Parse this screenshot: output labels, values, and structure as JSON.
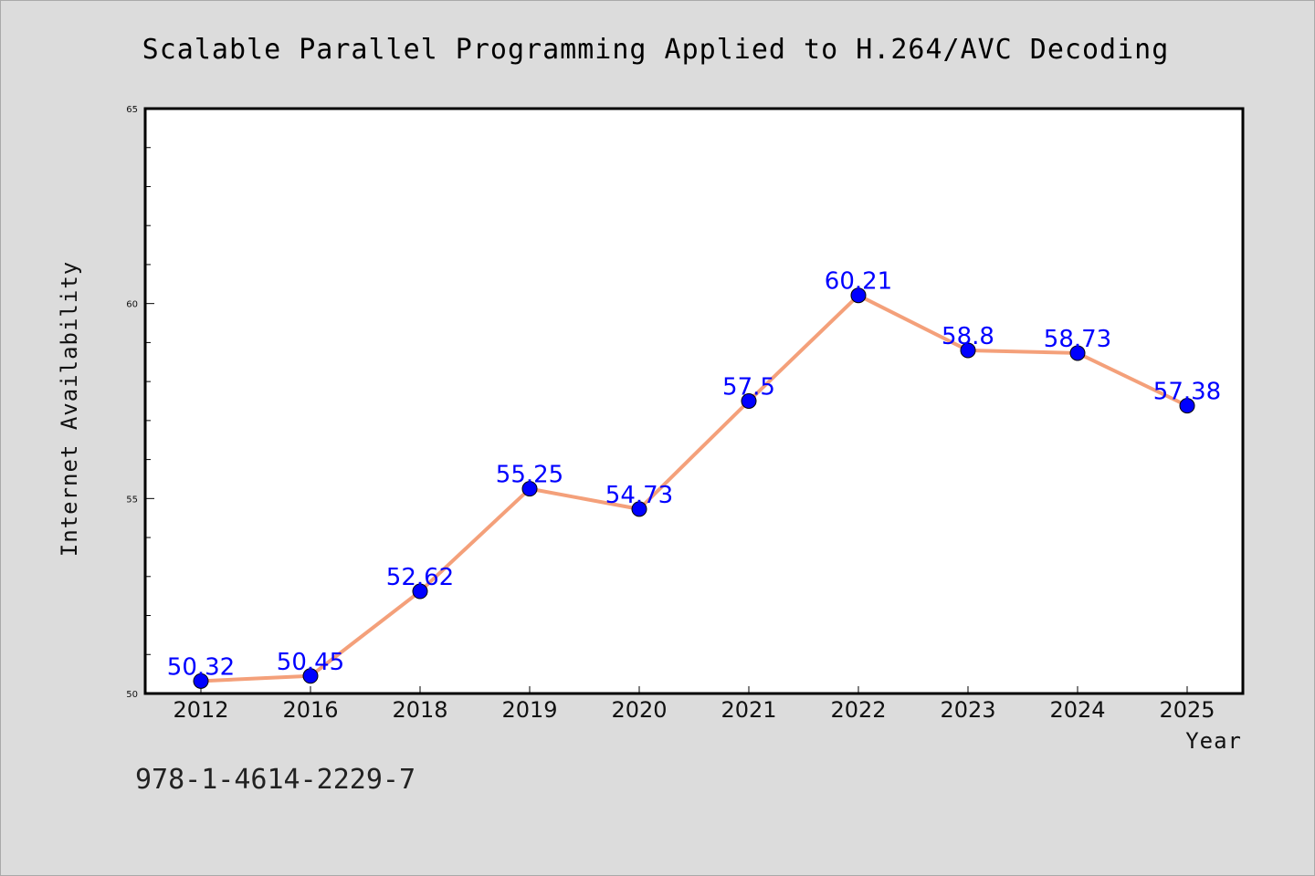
{
  "chart_data": {
    "type": "line",
    "title": "Scalable Parallel Programming Applied to H.264/AVC Decoding",
    "xlabel": "Year",
    "ylabel": "Internet Availability",
    "categories": [
      "2012",
      "2016",
      "2018",
      "2019",
      "2020",
      "2021",
      "2022",
      "2023",
      "2024",
      "2025"
    ],
    "values": [
      50.32,
      50.45,
      52.62,
      55.25,
      54.73,
      57.5,
      60.21,
      58.8,
      58.73,
      57.38
    ],
    "data_labels": [
      "50.32",
      "50.45",
      "52.62",
      "55.25",
      "54.73",
      "57.5",
      "60.21",
      "58.8",
      "58.73",
      "57.38"
    ],
    "ylim": [
      50,
      65
    ],
    "yticks": [
      50,
      55,
      60,
      65
    ],
    "ytick_labels": [
      "50",
      "55",
      "60",
      "65"
    ],
    "grid": false,
    "legend": "none",
    "colors": {
      "line": "#f4a07a",
      "marker": "#0000ff",
      "label": "#0000ff",
      "background": "#dcdcdc",
      "plot_background": "#ffffff"
    }
  },
  "footer": {
    "isbn": "978-1-4614-2229-7"
  }
}
